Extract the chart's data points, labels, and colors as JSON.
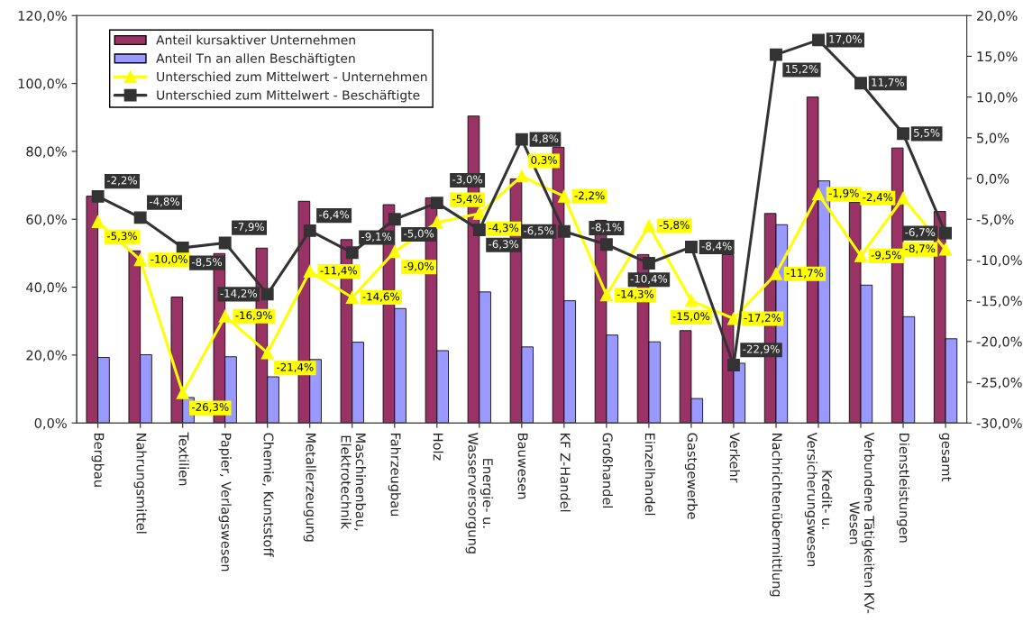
{
  "chart_data": {
    "type": "bar",
    "categories": [
      "Bergbau",
      "Nahrungsmittel",
      "Textilien",
      "Papier, Verlagswesen",
      "Chemie, Kunststoff",
      "Metallerzeugung",
      "Maschinenbau,\nElektrotechnik",
      "Fahrzeugbau",
      "Holz",
      "Energie- u.\nWasserversorgung",
      "Bauwesen",
      "KF Z-Handel",
      "Großhandel",
      "Einzelhandel",
      "Gastgewerbe",
      "Verkehr",
      "Nachrichtenübermittlung",
      "Kredit- u.\nVersicherungswesen",
      "Verbundene Tätigkeiten KV-\nWesen",
      "Dienstleistungen",
      "gesamt"
    ],
    "series": [
      {
        "name": "Anteil kursaktiver Unternehmen",
        "color": "#993366",
        "values": [
          66.8,
          50.7,
          37.1,
          49.9,
          51.5,
          65.3,
          54,
          64.3,
          66.3,
          90.4,
          71.9,
          81.2,
          59.7,
          49.6,
          27.2,
          49.6,
          61.7,
          96,
          65,
          81,
          62.3
        ]
      },
      {
        "name": "Anteil Tn an allen Beschäftigten",
        "color": "#9999ff",
        "values": [
          19.3,
          20.1,
          7.5,
          19.5,
          13.6,
          18.7,
          23.8,
          33.7,
          21.3,
          38.6,
          22.4,
          36,
          25.9,
          23.9,
          7.2,
          17.6,
          58.4,
          71.3,
          40.6,
          31.3,
          24.8
        ]
      },
      {
        "name": "Unterschied zum Mittelwert - Unternehmen",
        "type": "line",
        "axis": "y2",
        "color": "#ffff00",
        "marker": "triangle",
        "values": [
          -5.3,
          -10.0,
          -26.3,
          -16.9,
          -21.4,
          -11.4,
          -14.6,
          -9.0,
          -5.4,
          -4.3,
          0.3,
          -2.2,
          -14.3,
          -5.8,
          -15.0,
          -17.2,
          -11.7,
          -1.9,
          -9.5,
          -2.4,
          -8.7
        ],
        "value_labels": [
          "-5,3%",
          "-10,0%",
          "-26,3%",
          "-16,9%",
          "-21,4%",
          "-11,4%",
          "-14,6%",
          "-9,0%",
          "-5,4%",
          "-4,3%",
          "0,3%",
          "-2,2%",
          "-14,3%",
          "-5,8%",
          "-15,0%",
          "-17,2%",
          "-11,7%",
          "-1,9%",
          "-9,5%",
          "-2,4%",
          "-8,7%"
        ]
      },
      {
        "name": "Unterschied zum Mittelwert - Beschäftigte",
        "type": "line",
        "axis": "y2",
        "color": "#333333",
        "marker": "square",
        "values": [
          -2.2,
          -4.8,
          -8.5,
          -7.9,
          -14.2,
          -6.4,
          -9.1,
          -5.0,
          -3.0,
          -6.3,
          4.8,
          -6.5,
          -8.1,
          -10.4,
          -8.4,
          -22.9,
          15.2,
          17.0,
          11.7,
          5.5,
          -6.7
        ],
        "value_labels": [
          "-2,2%",
          "-4,8%",
          "-8,5%",
          "-7,9%",
          "-14,2%",
          "-6,4%",
          "-9,1%",
          "-5,0%",
          "-3,0%",
          "-6,3%",
          "4,8%",
          "-6,5%",
          "-8,1%",
          "-10,4%",
          "-8,4%",
          "-22,9%",
          "15,2%",
          "17,0%",
          "11,7%",
          "5,5%",
          "-6,7%"
        ]
      }
    ],
    "ylim": [
      0,
      120
    ],
    "yticks": [
      {
        "value": 0,
        "label": "0,0%"
      },
      {
        "value": 20,
        "label": "20,0%"
      },
      {
        "value": 40,
        "label": "40,0%"
      },
      {
        "value": 60,
        "label": "60,0%"
      },
      {
        "value": 80,
        "label": "80,0%"
      },
      {
        "value": 100,
        "label": "100,0%"
      },
      {
        "value": 120,
        "label": "120,0%"
      }
    ],
    "y2lim": [
      -30,
      20
    ],
    "y2ticks": [
      {
        "value": -30,
        "label": "-30,0%"
      },
      {
        "value": -25,
        "label": "-25,0%"
      },
      {
        "value": -20,
        "label": "-20,0%"
      },
      {
        "value": -15,
        "label": "-15,0%"
      },
      {
        "value": -10,
        "label": "-10,0%"
      },
      {
        "value": -5,
        "label": "-5,0%"
      },
      {
        "value": 0,
        "label": "0,0%"
      },
      {
        "value": 5,
        "label": "5,0%"
      },
      {
        "value": 10,
        "label": "10,0%"
      },
      {
        "value": 15,
        "label": "15,0%"
      },
      {
        "value": 20,
        "label": "20,0%"
      }
    ],
    "grid": false,
    "legend": "top left"
  }
}
